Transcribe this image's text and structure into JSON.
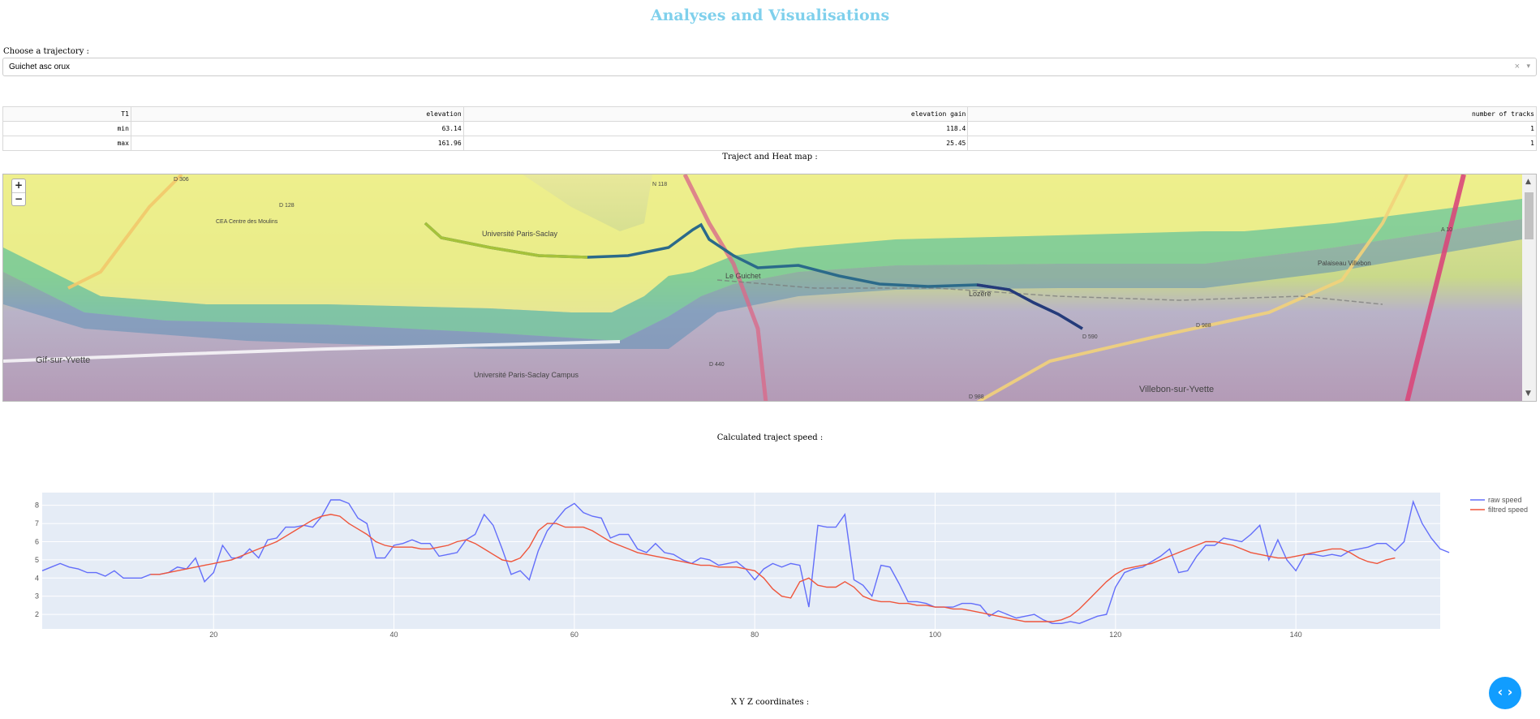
{
  "page": {
    "title": "Analyses and Visualisations"
  },
  "trajectory": {
    "label": "Choose a trajectory :",
    "selected": "Guichet asc orux",
    "clear_symbol": "×",
    "arrow_symbol": "▾"
  },
  "stats_table": {
    "headers": [
      "T1",
      "elevation",
      "elevation gain",
      "number of tracks"
    ],
    "rows": [
      [
        "min",
        "63.14",
        "118.4",
        "1"
      ],
      [
        "max",
        "161.96",
        "25.45",
        "1"
      ]
    ]
  },
  "map": {
    "title": "Traject and Heat map :",
    "zoom_in": "+",
    "zoom_out": "−",
    "labels": {
      "d306": "D 306",
      "n118": "N 118",
      "d128": "D 128",
      "d440": "D 440",
      "d988": "D 988",
      "d988b": "D 988",
      "d59": "D 59",
      "a10": "A 10",
      "gif": "Gif-sur-Yvette",
      "univ": "Université Paris-Saclay",
      "univ2": "Université Paris-Saclay Campus",
      "guichet": "Le Guichet",
      "lozere": "Lozère",
      "villebon": "Villebon-sur-Yvette",
      "palaiseau": "Palaiseau Villebon",
      "d590": "D 590",
      "cea": "CEA Centre des Moulins"
    },
    "scroll_up": "▲",
    "scroll_down": "▼"
  },
  "speed_section": {
    "title": "Calculated traject speed :"
  },
  "chart_data": {
    "type": "line",
    "xlim": [
      1,
      156
    ],
    "ylim": [
      1.2,
      8.7
    ],
    "x_ticks": [
      20,
      40,
      60,
      80,
      100,
      120,
      140
    ],
    "y_ticks": [
      2,
      3,
      4,
      5,
      6,
      7,
      8
    ],
    "legend_position": "top-right",
    "grid": true,
    "series": [
      {
        "name": "raw speed",
        "color": "#636efa",
        "x_start": 1,
        "values": [
          4.4,
          4.6,
          4.8,
          4.6,
          4.5,
          4.3,
          4.3,
          4.1,
          4.4,
          4.0,
          4.0,
          4.0,
          4.2,
          4.2,
          4.3,
          4.6,
          4.5,
          5.1,
          3.8,
          4.3,
          5.8,
          5.1,
          5.1,
          5.6,
          5.1,
          6.1,
          6.2,
          6.8,
          6.8,
          6.9,
          6.8,
          7.4,
          8.3,
          8.3,
          8.1,
          7.3,
          7.0,
          5.1,
          5.1,
          5.8,
          5.9,
          6.1,
          5.9,
          5.9,
          5.2,
          5.3,
          5.4,
          6.1,
          6.4,
          7.5,
          6.9,
          5.6,
          4.2,
          4.4,
          3.9,
          5.5,
          6.6,
          7.2,
          7.8,
          8.1,
          7.6,
          7.4,
          7.3,
          6.2,
          6.4,
          6.4,
          5.6,
          5.4,
          5.9,
          5.4,
          5.3,
          5.0,
          4.8,
          5.1,
          5.0,
          4.7,
          4.8,
          4.9,
          4.5,
          3.9,
          4.5,
          4.8,
          4.6,
          4.8,
          4.7,
          2.4,
          6.9,
          6.8,
          6.8,
          7.5,
          3.9,
          3.6,
          3.0,
          4.7,
          4.6,
          3.7,
          2.7,
          2.7,
          2.6,
          2.4,
          2.4,
          2.4,
          2.6,
          2.6,
          2.5,
          1.9,
          2.2,
          2.0,
          1.8,
          1.9,
          2.0,
          1.7,
          1.5,
          1.5,
          1.6,
          1.5,
          1.7,
          1.9,
          2.0,
          3.5,
          4.3,
          4.5,
          4.6,
          4.9,
          5.2,
          5.6,
          4.3,
          4.4,
          5.2,
          5.8,
          5.8,
          6.2,
          6.1,
          6.0,
          6.4,
          6.9,
          5.0,
          6.1,
          5.0,
          4.4,
          5.3,
          5.3,
          5.2,
          5.3,
          5.2,
          5.5,
          5.6,
          5.7,
          5.9,
          5.9,
          5.5,
          6.0,
          8.2,
          7.0,
          6.2,
          5.6,
          5.4
        ]
      },
      {
        "name": "filtred speed",
        "color": "#ef553b",
        "x_start": 13,
        "values": [
          4.2,
          4.2,
          4.3,
          4.4,
          4.5,
          4.6,
          4.7,
          4.8,
          4.9,
          5.0,
          5.2,
          5.4,
          5.6,
          5.8,
          6.0,
          6.3,
          6.6,
          6.9,
          7.2,
          7.4,
          7.5,
          7.4,
          7.0,
          6.7,
          6.4,
          6.0,
          5.8,
          5.7,
          5.7,
          5.7,
          5.6,
          5.6,
          5.7,
          5.8,
          6.0,
          6.1,
          5.9,
          5.6,
          5.3,
          5.0,
          4.9,
          5.1,
          5.7,
          6.6,
          7.0,
          7.0,
          6.8,
          6.8,
          6.8,
          6.6,
          6.3,
          6.0,
          5.8,
          5.6,
          5.4,
          5.3,
          5.2,
          5.1,
          5.0,
          4.9,
          4.8,
          4.7,
          4.7,
          4.6,
          4.6,
          4.6,
          4.5,
          4.4,
          4.0,
          3.4,
          3.0,
          2.9,
          3.8,
          4.0,
          3.6,
          3.5,
          3.5,
          3.8,
          3.5,
          3.0,
          2.8,
          2.7,
          2.7,
          2.6,
          2.6,
          2.5,
          2.5,
          2.4,
          2.4,
          2.3,
          2.3,
          2.2,
          2.1,
          2.0,
          1.9,
          1.8,
          1.7,
          1.6,
          1.6,
          1.6,
          1.6,
          1.7,
          1.9,
          2.3,
          2.8,
          3.3,
          3.8,
          4.2,
          4.5,
          4.6,
          4.7,
          4.8,
          5.0,
          5.2,
          5.4,
          5.6,
          5.8,
          6.0,
          6.0,
          5.9,
          5.8,
          5.6,
          5.4,
          5.3,
          5.2,
          5.1,
          5.1,
          5.2,
          5.3,
          5.4,
          5.5,
          5.6,
          5.6,
          5.4,
          5.1,
          4.9,
          4.8,
          5.0,
          5.1
        ]
      }
    ]
  },
  "xyz_section": {
    "title": "X Y Z coordinates :"
  },
  "fab": {
    "symbol": "‹ ›"
  }
}
